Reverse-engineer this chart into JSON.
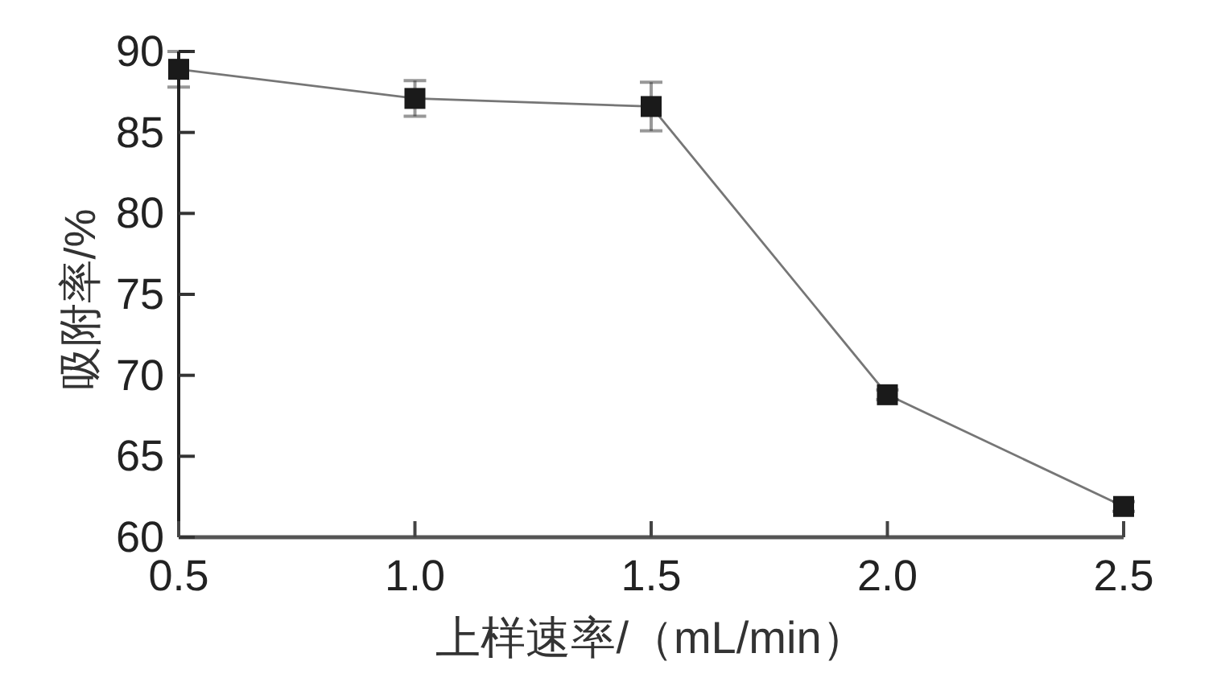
{
  "chart_data": {
    "type": "line",
    "xlabel": "上样速率/（mL/min）",
    "ylabel": "吸附率/%",
    "x": [
      0.5,
      1.0,
      1.5,
      2.0,
      2.5
    ],
    "series": [
      {
        "color": "#1a1a1a",
        "values": [
          88.9,
          87.1,
          86.6,
          68.8,
          61.9
        ],
        "errors": [
          1.1,
          1.1,
          1.5,
          0.3,
          0.3
        ]
      }
    ],
    "xlim": [
      0.5,
      2.5
    ],
    "ylim": [
      60,
      90
    ],
    "xticks": [
      0.5,
      {
        "value": 1,
        "label": "1.0"
      },
      1.5,
      {
        "value": 2,
        "label": "2.0"
      },
      2.5
    ],
    "yticks": [
      60,
      65,
      70,
      75,
      80,
      85,
      90
    ],
    "marker": "square"
  }
}
